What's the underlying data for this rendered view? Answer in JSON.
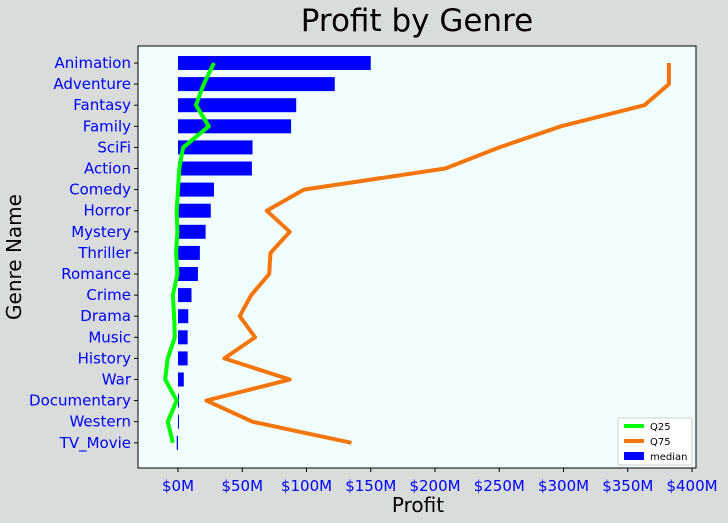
{
  "chart_data": {
    "type": "bar",
    "orientation": "horizontal",
    "title": "Profit by Genre",
    "xlabel": "Profit",
    "ylabel": "Genre Name",
    "xlim": [
      -30000000,
      400000000
    ],
    "xticks": [
      0,
      50000000,
      100000000,
      150000000,
      200000000,
      250000000,
      300000000,
      350000000,
      400000000
    ],
    "xtick_labels": [
      "$0M",
      "$50M",
      "$100M",
      "$150M",
      "$200M",
      "$250M",
      "$300M",
      "$350M",
      "$400M"
    ],
    "categories": [
      "Animation",
      "Adventure",
      "Fantasy",
      "Family",
      "SciFi",
      "Action",
      "Comedy",
      "Horror",
      "Mystery",
      "Thriller",
      "Romance",
      "Crime",
      "Drama",
      "Music",
      "History",
      "War",
      "Documentary",
      "Western",
      "TV_Movie"
    ],
    "series": [
      {
        "name": "median",
        "kind": "bar",
        "color": "#0000ff",
        "values": [
          150000000,
          122000000,
          92000000,
          88000000,
          58000000,
          57500000,
          28000000,
          25500000,
          21500000,
          17000000,
          15500000,
          10500000,
          8000000,
          7500000,
          7500000,
          4500000,
          500000,
          300000,
          -1000000
        ]
      },
      {
        "name": "Q25",
        "kind": "line",
        "color": "#00ff00",
        "values": [
          28000000,
          20000000,
          14000000,
          24000000,
          4000000,
          1000000,
          0,
          -1000000,
          -500000,
          -1500000,
          -500000,
          -4000000,
          -3000000,
          -2500000,
          -8000000,
          -10000000,
          -1000000,
          -8000000,
          -4000000
        ]
      },
      {
        "name": "Q75",
        "kind": "line",
        "color": "#f5750d",
        "values": [
          382000000,
          382000000,
          363000000,
          298000000,
          250000000,
          208000000,
          98000000,
          69000000,
          87000000,
          72000000,
          71000000,
          57000000,
          48000000,
          60000000,
          36000000,
          87000000,
          22000000,
          58000000,
          135000000
        ]
      }
    ],
    "legend": {
      "position": "lower-right",
      "entries": [
        {
          "label": "Q25",
          "color": "#00ff00",
          "kind": "line"
        },
        {
          "label": "Q75",
          "color": "#f5750d",
          "kind": "line"
        },
        {
          "label": "median",
          "color": "#0000ff",
          "kind": "patch"
        }
      ]
    },
    "colors": {
      "figure_background": "#d8dcdb",
      "plot_background": "#f0fffe",
      "category_labels": "#0000ff"
    }
  }
}
